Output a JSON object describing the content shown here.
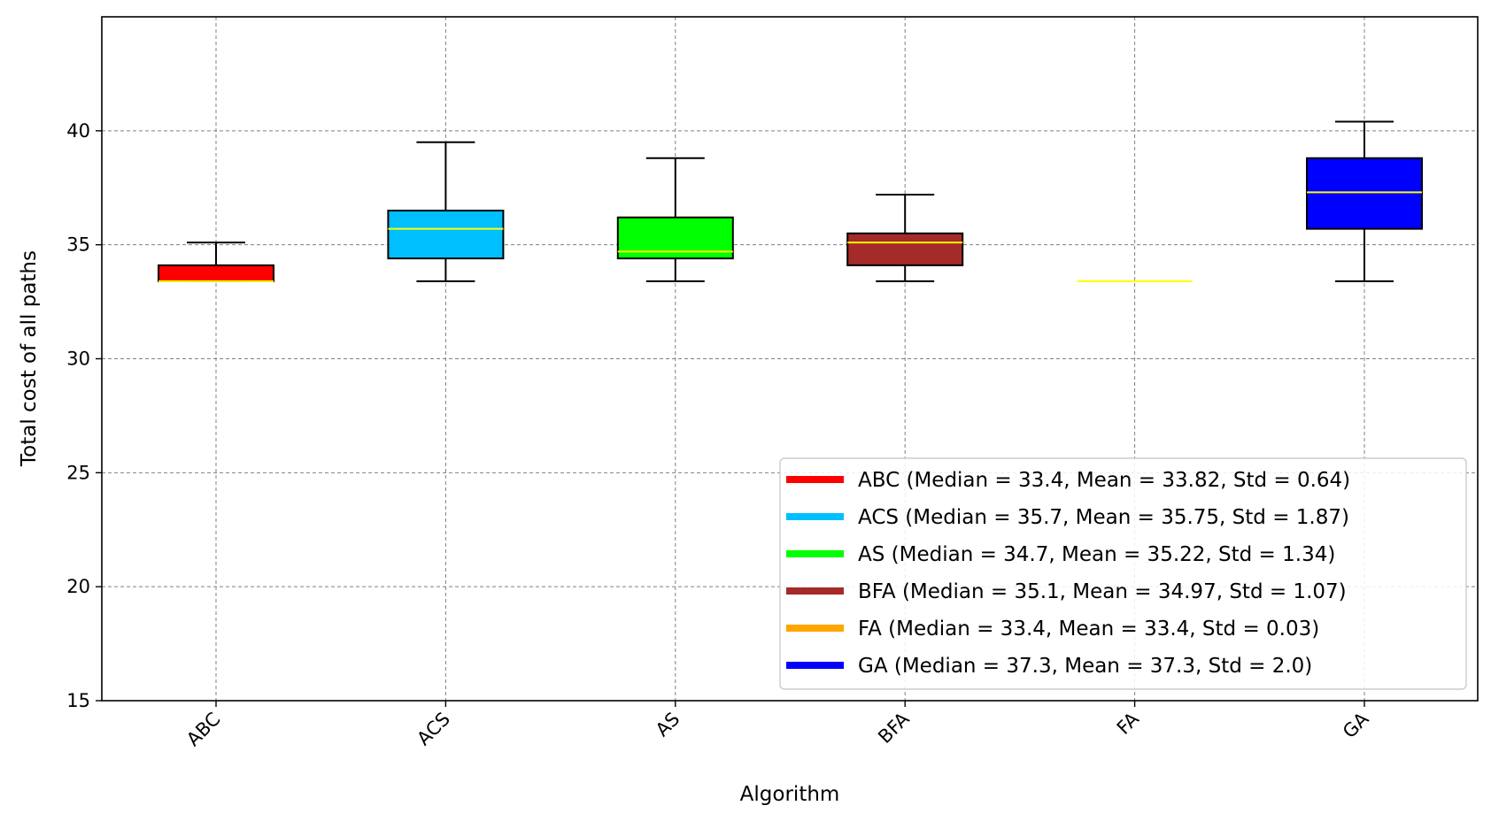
{
  "chart_data": {
    "type": "box",
    "xlabel": "Algorithm",
    "ylabel": "Total cost of all paths",
    "ylim": [
      15,
      45
    ],
    "yticks": [
      15,
      20,
      25,
      30,
      35,
      40
    ],
    "grid": true,
    "legend_position": "lower-right",
    "median_line_color": "#ffff00",
    "categories": [
      "ABC",
      "ACS",
      "AS",
      "BFA",
      "FA",
      "GA"
    ],
    "boxes": [
      {
        "name": "ABC",
        "color": "#ff0000",
        "whisker_low": 33.4,
        "q1": 33.4,
        "median": 33.4,
        "q3": 34.1,
        "whisker_high": 35.1,
        "legend": "ABC (Median = 33.4, Mean = 33.82, Std = 0.64)"
      },
      {
        "name": "ACS",
        "color": "#00bfff",
        "whisker_low": 33.4,
        "q1": 34.4,
        "median": 35.7,
        "q3": 36.5,
        "whisker_high": 39.5,
        "legend": "ACS (Median = 35.7, Mean = 35.75, Std = 1.87)"
      },
      {
        "name": "AS",
        "color": "#00ff00",
        "whisker_low": 33.4,
        "q1": 34.4,
        "median": 34.7,
        "q3": 36.2,
        "whisker_high": 38.8,
        "legend": "AS (Median = 34.7, Mean = 35.22, Std = 1.34)"
      },
      {
        "name": "BFA",
        "color": "#a52a2a",
        "whisker_low": 33.4,
        "q1": 34.1,
        "median": 35.1,
        "q3": 35.5,
        "whisker_high": 37.2,
        "legend": "BFA (Median = 35.1, Mean = 34.97, Std = 1.07)"
      },
      {
        "name": "FA",
        "color": "#ffa500",
        "whisker_low": 33.4,
        "q1": 33.4,
        "median": 33.4,
        "q3": 33.4,
        "whisker_high": 33.4,
        "legend": "FA (Median = 33.4, Mean = 33.4, Std = 0.03)"
      },
      {
        "name": "GA",
        "color": "#0000ff",
        "whisker_low": 33.4,
        "q1": 35.7,
        "median": 37.3,
        "q3": 38.8,
        "whisker_high": 40.4,
        "legend": "GA (Median = 37.3, Mean = 37.3, Std = 2.0)"
      }
    ]
  }
}
